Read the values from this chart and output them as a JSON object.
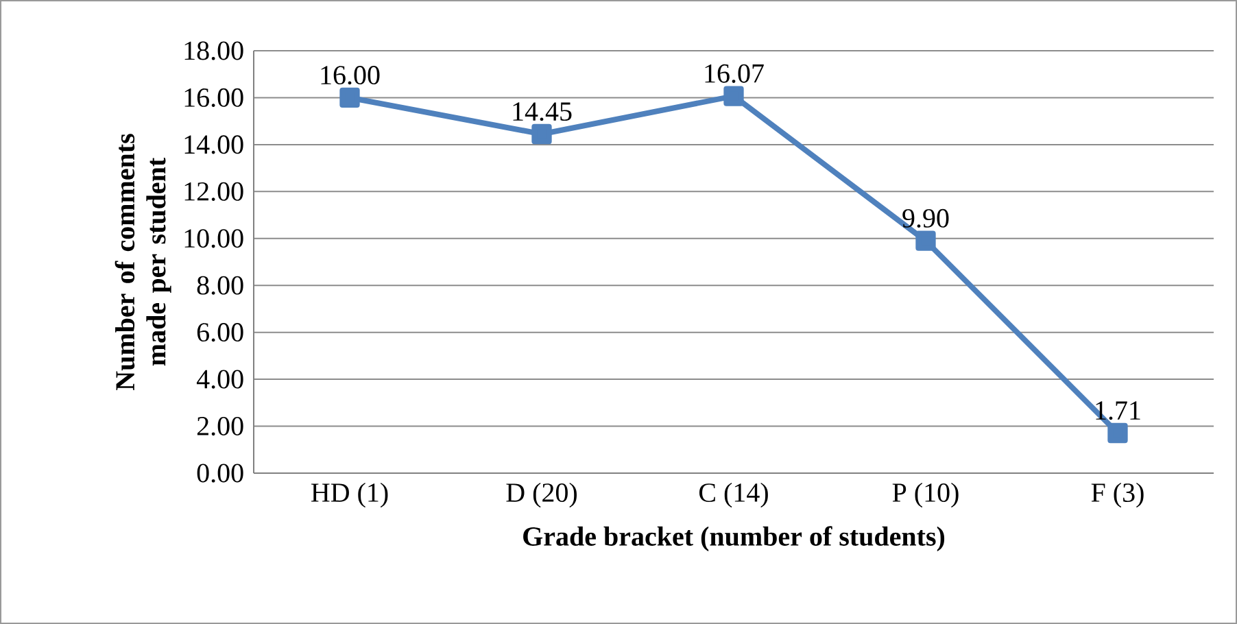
{
  "chart_data": {
    "type": "line",
    "xlabel": "Grade bracket (number of students)",
    "ylabel": "Number of comments made per student",
    "categories": [
      "HD (1)",
      "D (20)",
      "C (14)",
      "P (10)",
      "F (3)"
    ],
    "series": [
      {
        "color": "#4f81bd",
        "values": [
          16.0,
          14.45,
          16.07,
          9.9,
          1.71
        ],
        "value_labels": [
          "16.00",
          "14.45",
          "16.07",
          "9.90",
          "1.71"
        ]
      }
    ],
    "ylim": [
      0,
      18
    ],
    "yticks": [
      {
        "value": 0,
        "label": "0.00"
      },
      {
        "value": 2,
        "label": "2.00"
      },
      {
        "value": 4,
        "label": "4.00"
      },
      {
        "value": 6,
        "label": "6.00"
      },
      {
        "value": 8,
        "label": "8.00"
      },
      {
        "value": 10,
        "label": "10.00"
      },
      {
        "value": 12,
        "label": "12.00"
      },
      {
        "value": 14,
        "label": "14.00"
      },
      {
        "value": 16,
        "label": "16.00"
      },
      {
        "value": 18,
        "label": "18.00"
      }
    ],
    "grid": "y",
    "marker": "square",
    "line_style": "solid"
  }
}
